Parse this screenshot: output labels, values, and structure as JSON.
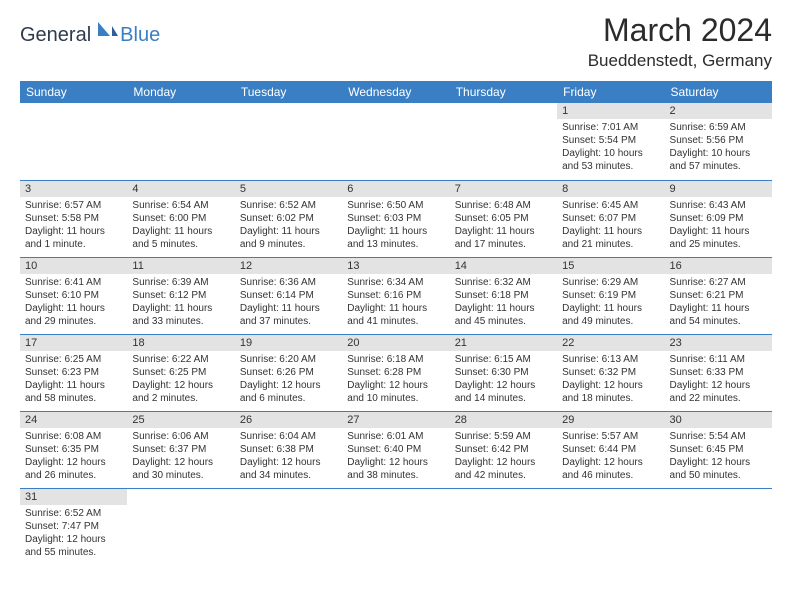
{
  "logo": {
    "general": "General",
    "blue": "Blue"
  },
  "header": {
    "title": "March 2024",
    "location": "Bueddenstedt, Germany"
  },
  "colors": {
    "header_bg": "#3a7fc4",
    "daynum_bg": "#e3e3e3",
    "divider": "#3a7fc4"
  },
  "weekdays": [
    "Sunday",
    "Monday",
    "Tuesday",
    "Wednesday",
    "Thursday",
    "Friday",
    "Saturday"
  ],
  "weeks": [
    [
      {
        "empty": true
      },
      {
        "empty": true
      },
      {
        "empty": true
      },
      {
        "empty": true
      },
      {
        "empty": true
      },
      {
        "n": "1",
        "sunrise": "Sunrise: 7:01 AM",
        "sunset": "Sunset: 5:54 PM",
        "daylight": "Daylight: 10 hours and 53 minutes."
      },
      {
        "n": "2",
        "sunrise": "Sunrise: 6:59 AM",
        "sunset": "Sunset: 5:56 PM",
        "daylight": "Daylight: 10 hours and 57 minutes."
      }
    ],
    [
      {
        "n": "3",
        "sunrise": "Sunrise: 6:57 AM",
        "sunset": "Sunset: 5:58 PM",
        "daylight": "Daylight: 11 hours and 1 minute."
      },
      {
        "n": "4",
        "sunrise": "Sunrise: 6:54 AM",
        "sunset": "Sunset: 6:00 PM",
        "daylight": "Daylight: 11 hours and 5 minutes."
      },
      {
        "n": "5",
        "sunrise": "Sunrise: 6:52 AM",
        "sunset": "Sunset: 6:02 PM",
        "daylight": "Daylight: 11 hours and 9 minutes."
      },
      {
        "n": "6",
        "sunrise": "Sunrise: 6:50 AM",
        "sunset": "Sunset: 6:03 PM",
        "daylight": "Daylight: 11 hours and 13 minutes."
      },
      {
        "n": "7",
        "sunrise": "Sunrise: 6:48 AM",
        "sunset": "Sunset: 6:05 PM",
        "daylight": "Daylight: 11 hours and 17 minutes."
      },
      {
        "n": "8",
        "sunrise": "Sunrise: 6:45 AM",
        "sunset": "Sunset: 6:07 PM",
        "daylight": "Daylight: 11 hours and 21 minutes."
      },
      {
        "n": "9",
        "sunrise": "Sunrise: 6:43 AM",
        "sunset": "Sunset: 6:09 PM",
        "daylight": "Daylight: 11 hours and 25 minutes."
      }
    ],
    [
      {
        "n": "10",
        "sunrise": "Sunrise: 6:41 AM",
        "sunset": "Sunset: 6:10 PM",
        "daylight": "Daylight: 11 hours and 29 minutes."
      },
      {
        "n": "11",
        "sunrise": "Sunrise: 6:39 AM",
        "sunset": "Sunset: 6:12 PM",
        "daylight": "Daylight: 11 hours and 33 minutes."
      },
      {
        "n": "12",
        "sunrise": "Sunrise: 6:36 AM",
        "sunset": "Sunset: 6:14 PM",
        "daylight": "Daylight: 11 hours and 37 minutes."
      },
      {
        "n": "13",
        "sunrise": "Sunrise: 6:34 AM",
        "sunset": "Sunset: 6:16 PM",
        "daylight": "Daylight: 11 hours and 41 minutes."
      },
      {
        "n": "14",
        "sunrise": "Sunrise: 6:32 AM",
        "sunset": "Sunset: 6:18 PM",
        "daylight": "Daylight: 11 hours and 45 minutes."
      },
      {
        "n": "15",
        "sunrise": "Sunrise: 6:29 AM",
        "sunset": "Sunset: 6:19 PM",
        "daylight": "Daylight: 11 hours and 49 minutes."
      },
      {
        "n": "16",
        "sunrise": "Sunrise: 6:27 AM",
        "sunset": "Sunset: 6:21 PM",
        "daylight": "Daylight: 11 hours and 54 minutes."
      }
    ],
    [
      {
        "n": "17",
        "sunrise": "Sunrise: 6:25 AM",
        "sunset": "Sunset: 6:23 PM",
        "daylight": "Daylight: 11 hours and 58 minutes."
      },
      {
        "n": "18",
        "sunrise": "Sunrise: 6:22 AM",
        "sunset": "Sunset: 6:25 PM",
        "daylight": "Daylight: 12 hours and 2 minutes."
      },
      {
        "n": "19",
        "sunrise": "Sunrise: 6:20 AM",
        "sunset": "Sunset: 6:26 PM",
        "daylight": "Daylight: 12 hours and 6 minutes."
      },
      {
        "n": "20",
        "sunrise": "Sunrise: 6:18 AM",
        "sunset": "Sunset: 6:28 PM",
        "daylight": "Daylight: 12 hours and 10 minutes."
      },
      {
        "n": "21",
        "sunrise": "Sunrise: 6:15 AM",
        "sunset": "Sunset: 6:30 PM",
        "daylight": "Daylight: 12 hours and 14 minutes."
      },
      {
        "n": "22",
        "sunrise": "Sunrise: 6:13 AM",
        "sunset": "Sunset: 6:32 PM",
        "daylight": "Daylight: 12 hours and 18 minutes."
      },
      {
        "n": "23",
        "sunrise": "Sunrise: 6:11 AM",
        "sunset": "Sunset: 6:33 PM",
        "daylight": "Daylight: 12 hours and 22 minutes."
      }
    ],
    [
      {
        "n": "24",
        "sunrise": "Sunrise: 6:08 AM",
        "sunset": "Sunset: 6:35 PM",
        "daylight": "Daylight: 12 hours and 26 minutes."
      },
      {
        "n": "25",
        "sunrise": "Sunrise: 6:06 AM",
        "sunset": "Sunset: 6:37 PM",
        "daylight": "Daylight: 12 hours and 30 minutes."
      },
      {
        "n": "26",
        "sunrise": "Sunrise: 6:04 AM",
        "sunset": "Sunset: 6:38 PM",
        "daylight": "Daylight: 12 hours and 34 minutes."
      },
      {
        "n": "27",
        "sunrise": "Sunrise: 6:01 AM",
        "sunset": "Sunset: 6:40 PM",
        "daylight": "Daylight: 12 hours and 38 minutes."
      },
      {
        "n": "28",
        "sunrise": "Sunrise: 5:59 AM",
        "sunset": "Sunset: 6:42 PM",
        "daylight": "Daylight: 12 hours and 42 minutes."
      },
      {
        "n": "29",
        "sunrise": "Sunrise: 5:57 AM",
        "sunset": "Sunset: 6:44 PM",
        "daylight": "Daylight: 12 hours and 46 minutes."
      },
      {
        "n": "30",
        "sunrise": "Sunrise: 5:54 AM",
        "sunset": "Sunset: 6:45 PM",
        "daylight": "Daylight: 12 hours and 50 minutes."
      }
    ],
    [
      {
        "n": "31",
        "sunrise": "Sunrise: 6:52 AM",
        "sunset": "Sunset: 7:47 PM",
        "daylight": "Daylight: 12 hours and 55 minutes."
      },
      {
        "empty": true
      },
      {
        "empty": true
      },
      {
        "empty": true
      },
      {
        "empty": true
      },
      {
        "empty": true
      },
      {
        "empty": true
      }
    ]
  ]
}
